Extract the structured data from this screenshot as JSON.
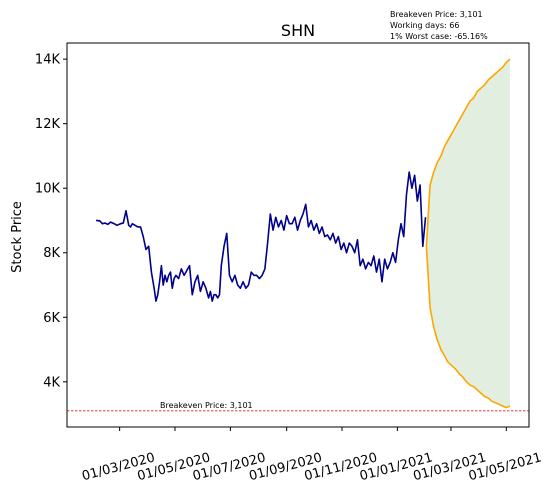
{
  "chart_data": {
    "type": "line",
    "title": "SHN",
    "xlabel": "",
    "ylabel": "Stock Price",
    "info_lines": [
      "Breakeven Price: 3,101",
      "Working days: 66",
      "1% Worst case: -65.16%"
    ],
    "breakeven": {
      "value": 3101,
      "label": "Breakeven Price: 3,101",
      "color": "#d62728"
    },
    "ylim": [
      2600,
      14500
    ],
    "y_ticks": [
      4000,
      6000,
      8000,
      10000,
      12000,
      14000
    ],
    "y_tick_labels": [
      "4K",
      "6K",
      "8K",
      "10K",
      "12K",
      "14K"
    ],
    "xlim": [
      "2020-01-03",
      "2021-05-26"
    ],
    "x_ticks": [
      "2020-03-01",
      "2020-05-01",
      "2020-07-01",
      "2020-09-01",
      "2020-11-01",
      "2021-01-01",
      "2021-03-01",
      "2021-05-01"
    ],
    "x_tick_labels": [
      "01/03/2020",
      "01/05/2020",
      "01/07/2020",
      "01/09/2020",
      "01/11/2020",
      "01/01/2021",
      "01/03/2021",
      "01/05/2021"
    ],
    "colors": {
      "price": "#00008b",
      "forecast": "#ffa500",
      "band": "#d8ead6"
    },
    "series": [
      {
        "name": "",
        "color": "#00008b",
        "x": [
          "2020-02-04",
          "2020-02-08",
          "2020-02-11",
          "2020-02-14",
          "2020-02-17",
          "2020-02-20",
          "2020-02-24",
          "2020-02-27",
          "2020-03-02",
          "2020-03-05",
          "2020-03-08",
          "2020-03-11",
          "2020-03-13",
          "2020-03-15",
          "2020-03-18",
          "2020-03-21",
          "2020-03-24",
          "2020-03-27",
          "2020-03-30",
          "2020-04-02",
          "2020-04-05",
          "2020-04-08",
          "2020-04-10",
          "2020-04-12",
          "2020-04-14",
          "2020-04-16",
          "2020-04-18",
          "2020-04-20",
          "2020-04-22",
          "2020-04-24",
          "2020-04-26",
          "2020-04-28",
          "2020-04-30",
          "2020-05-02",
          "2020-05-05",
          "2020-05-08",
          "2020-05-11",
          "2020-05-14",
          "2020-05-17",
          "2020-05-20",
          "2020-05-23",
          "2020-05-26",
          "2020-05-29",
          "2020-06-01",
          "2020-06-04",
          "2020-06-07",
          "2020-06-09",
          "2020-06-11",
          "2020-06-13",
          "2020-06-15",
          "2020-06-17",
          "2020-06-19",
          "2020-06-21",
          "2020-06-24",
          "2020-06-27",
          "2020-06-30",
          "2020-07-03",
          "2020-07-06",
          "2020-07-09",
          "2020-07-12",
          "2020-07-15",
          "2020-07-18",
          "2020-07-21",
          "2020-07-24",
          "2020-07-27",
          "2020-07-30",
          "2020-08-02",
          "2020-08-05",
          "2020-08-08",
          "2020-08-11",
          "2020-08-14",
          "2020-08-17",
          "2020-08-20",
          "2020-08-23",
          "2020-08-26",
          "2020-08-29",
          "2020-09-01",
          "2020-09-04",
          "2020-09-07",
          "2020-09-10",
          "2020-09-13",
          "2020-09-16",
          "2020-09-19",
          "2020-09-22",
          "2020-09-25",
          "2020-09-28",
          "2020-10-01",
          "2020-10-04",
          "2020-10-07",
          "2020-10-10",
          "2020-10-13",
          "2020-10-16",
          "2020-10-19",
          "2020-10-22",
          "2020-10-25",
          "2020-10-28",
          "2020-10-31",
          "2020-11-03",
          "2020-11-06",
          "2020-11-09",
          "2020-11-12",
          "2020-11-15",
          "2020-11-18",
          "2020-11-21",
          "2020-11-24",
          "2020-11-27",
          "2020-11-30",
          "2020-12-03",
          "2020-12-06",
          "2020-12-09",
          "2020-12-12",
          "2020-12-15",
          "2020-12-18",
          "2020-12-21",
          "2020-12-24",
          "2020-12-27",
          "2020-12-30",
          "2021-01-02",
          "2021-01-05",
          "2021-01-08",
          "2021-01-11",
          "2021-01-14",
          "2021-01-17",
          "2021-01-20",
          "2021-01-23",
          "2021-01-26",
          "2021-01-29",
          "2021-02-01"
        ],
        "y": [
          9000,
          8990,
          8900,
          8920,
          8880,
          8950,
          8900,
          8850,
          8900,
          8920,
          9300,
          8850,
          8800,
          8900,
          8850,
          8800,
          8800,
          8500,
          8100,
          8200,
          7400,
          6900,
          6500,
          6700,
          7100,
          7600,
          7000,
          7300,
          7100,
          7300,
          7400,
          6900,
          7200,
          7300,
          7200,
          7500,
          7300,
          7450,
          7600,
          6700,
          7100,
          7300,
          6800,
          7100,
          6900,
          6600,
          6800,
          6500,
          6700,
          6700,
          6600,
          6700,
          7600,
          8200,
          8600,
          7300,
          7100,
          7300,
          7000,
          6900,
          7100,
          6900,
          7000,
          7400,
          7300,
          7300,
          7200,
          7300,
          7500,
          8300,
          9200,
          8700,
          9100,
          8800,
          9000,
          8700,
          9150,
          8900,
          8900,
          9100,
          8700,
          9000,
          9200,
          9500,
          8800,
          9000,
          8700,
          8900,
          8600,
          8800,
          8500,
          8550,
          8400,
          8600,
          8300,
          8500,
          8100,
          8300,
          8000,
          8300,
          8200,
          8000,
          8400,
          7600,
          7800,
          7500,
          7700,
          7600,
          7900,
          7400,
          7800,
          7100,
          7800,
          7500,
          7700,
          8000,
          7700,
          8400,
          8900,
          8500,
          9800,
          10500,
          10000,
          10400,
          9600,
          10100,
          8200,
          9100
        ]
      },
      {
        "name": "",
        "color": "#ffa500",
        "x": [
          "2021-02-02",
          "2021-02-06",
          "2021-02-10",
          "2021-02-14",
          "2021-02-18",
          "2021-02-22",
          "2021-02-26",
          "2021-03-02",
          "2021-03-06",
          "2021-03-10",
          "2021-03-14",
          "2021-03-18",
          "2021-03-22",
          "2021-03-26",
          "2021-03-30",
          "2021-04-03",
          "2021-04-07",
          "2021-04-11",
          "2021-04-15",
          "2021-04-19",
          "2021-04-23",
          "2021-04-27",
          "2021-05-01",
          "2021-05-05"
        ],
        "y": [
          8200,
          10100,
          10500,
          10800,
          11000,
          11300,
          11500,
          11700,
          11900,
          12100,
          12300,
          12500,
          12700,
          12800,
          13000,
          13100,
          13200,
          13350,
          13450,
          13550,
          13650,
          13750,
          13900,
          14000
        ]
      },
      {
        "name": "",
        "color": "#ffa500",
        "x": [
          "2021-02-02",
          "2021-02-06",
          "2021-02-10",
          "2021-02-14",
          "2021-02-18",
          "2021-02-22",
          "2021-02-26",
          "2021-03-02",
          "2021-03-06",
          "2021-03-10",
          "2021-03-14",
          "2021-03-18",
          "2021-03-22",
          "2021-03-26",
          "2021-03-30",
          "2021-04-03",
          "2021-04-07",
          "2021-04-11",
          "2021-04-15",
          "2021-04-19",
          "2021-04-23",
          "2021-04-27",
          "2021-05-01",
          "2021-05-05"
        ],
        "y": [
          8200,
          6300,
          5700,
          5300,
          5000,
          4800,
          4600,
          4500,
          4400,
          4250,
          4150,
          4000,
          3900,
          3850,
          3750,
          3650,
          3550,
          3500,
          3400,
          3350,
          3300,
          3250,
          3200,
          3250
        ]
      }
    ]
  }
}
